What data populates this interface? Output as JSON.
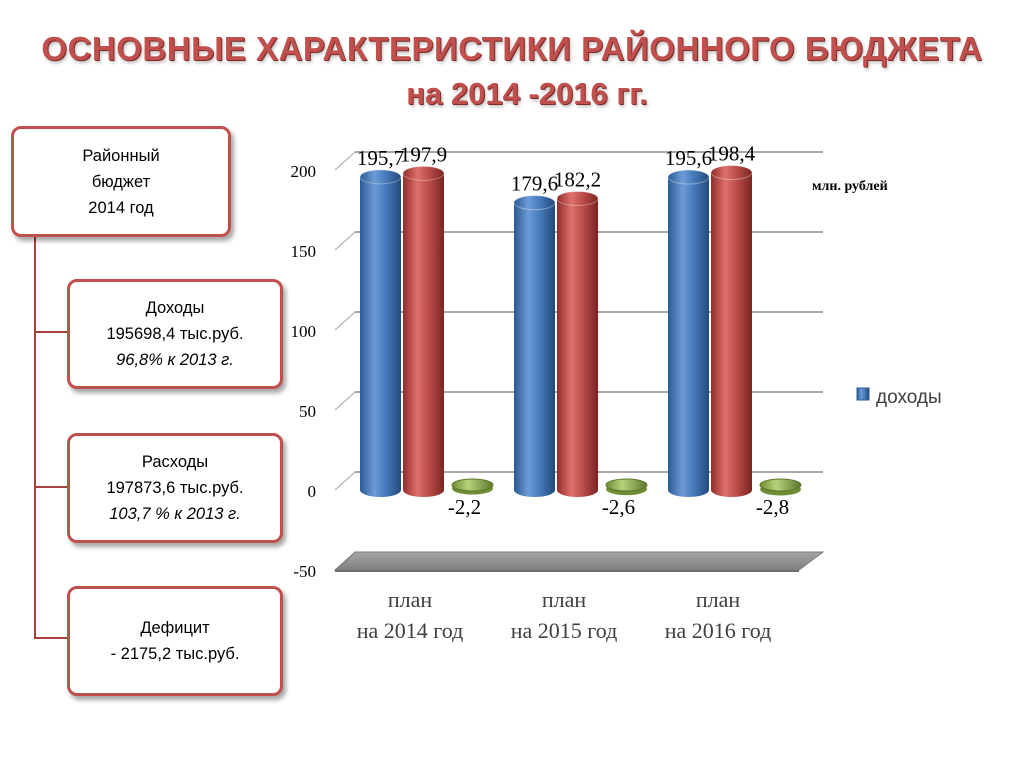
{
  "title": {
    "line1": "ОСНОВНЫЕ ХАРАКТЕРИСТИКИ РАЙОННОГО БЮДЖЕТА",
    "line2": "на 2014 -2016 гг."
  },
  "budget_box": {
    "line1": "Районный",
    "line2": "бюджет",
    "line3": "2014 год"
  },
  "income_box": {
    "label": "Доходы",
    "amount": "195698,4 тыс.руб.",
    "percent": "96,8% к 2013 г."
  },
  "expense_box": {
    "label": "Расходы",
    "amount": "197873,6 тыс.руб.",
    "percent": "103,7 % к 2013 г."
  },
  "deficit_box": {
    "label": "Дефицит",
    "amount": "- 2175,2 тыс.руб."
  },
  "colors": {
    "accent": "#c0504d",
    "income_bar": "#4f81bd",
    "expense_bar": "#c0504d",
    "deficit_bar": "#9bbb59"
  },
  "chart_data": {
    "type": "bar",
    "unit_label": "млн. рублей",
    "categories": [
      [
        "план",
        "на 2014 год"
      ],
      [
        "план",
        "на 2015 год"
      ],
      [
        "план",
        "на 2016 год"
      ]
    ],
    "series": [
      {
        "name": "доходы",
        "values": [
          195.7,
          179.6,
          195.6
        ],
        "labels": [
          "195,7",
          "179,6",
          "195,6"
        ]
      },
      {
        "values": [
          197.9,
          182.2,
          198.4
        ],
        "labels": [
          "197,9",
          "182,2",
          "198,4"
        ]
      },
      {
        "values": [
          -2.2,
          -2.6,
          -2.8
        ],
        "labels": [
          "-2,2",
          "-2,6",
          "-2,8"
        ]
      }
    ],
    "ylim": [
      -50,
      200
    ],
    "yticks": [
      -50,
      0,
      50,
      100,
      150,
      200
    ],
    "grid": true,
    "legend_position": "right"
  }
}
